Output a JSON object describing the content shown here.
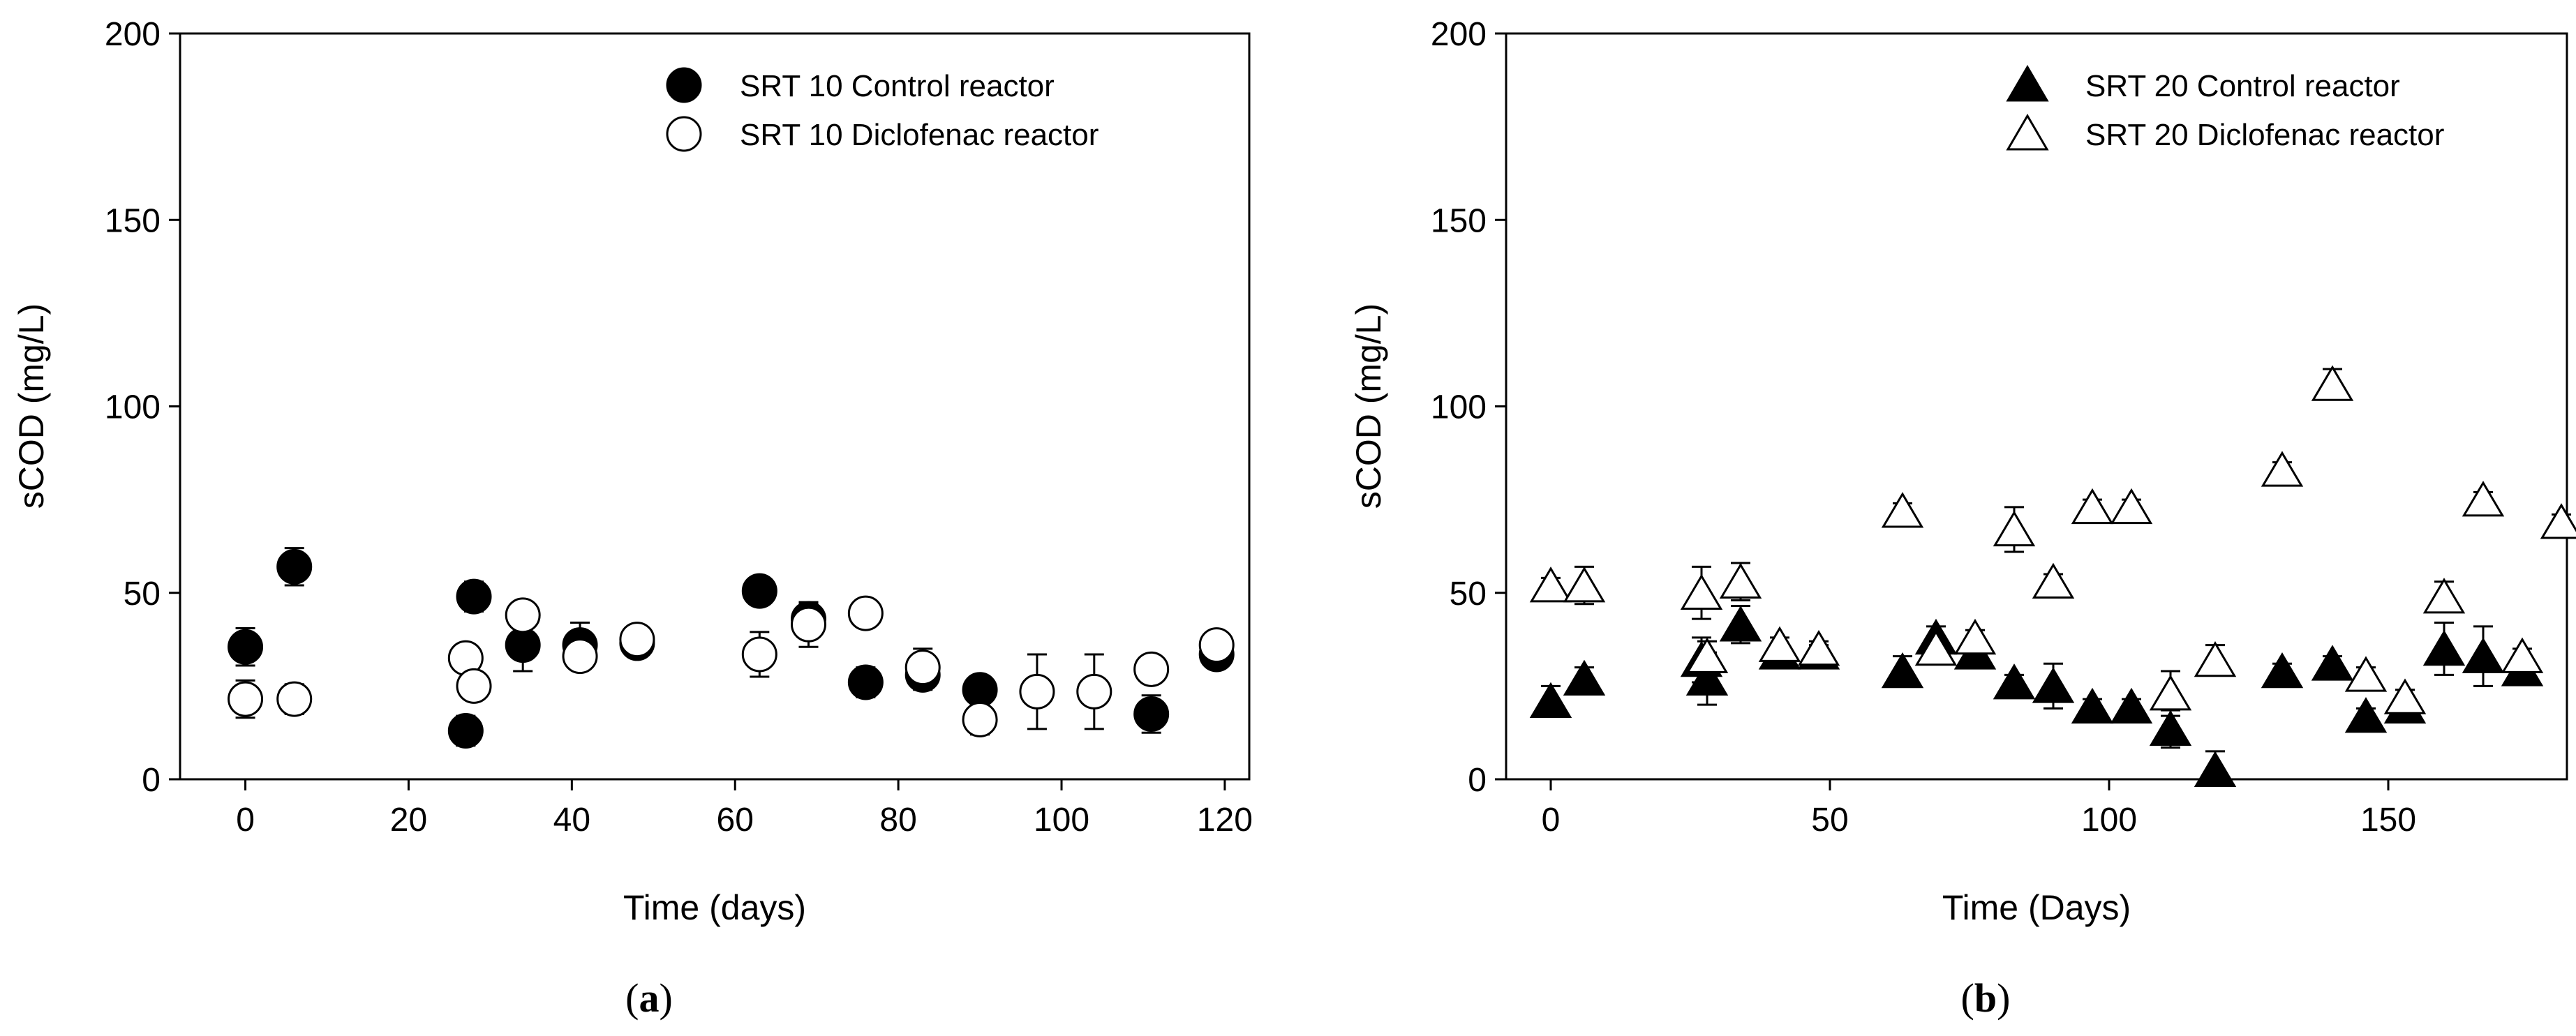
{
  "chart_data": [
    {
      "type": "scatter",
      "caption": {
        "open": "(",
        "letter": "a",
        "close": ")"
      },
      "xlabel": "Time (days)",
      "ylabel": "sCOD (mg/L)",
      "xlim": [
        -8,
        123
      ],
      "ylim": [
        0,
        200
      ],
      "xticks": [
        0,
        20,
        40,
        60,
        80,
        100,
        120
      ],
      "yticks": [
        0,
        50,
        100,
        150,
        200
      ],
      "grid": false,
      "legend_position": "top-right",
      "series": [
        {
          "name": "SRT 10 Control reactor",
          "marker": "circle",
          "fill": "#000000",
          "points": [
            {
              "x": 0,
              "y": 35.5,
              "err": 5
            },
            {
              "x": 6,
              "y": 57,
              "err": 5
            },
            {
              "x": 27,
              "y": 13,
              "err": 4
            },
            {
              "x": 28,
              "y": 49,
              "err": 4
            },
            {
              "x": 34,
              "y": 36,
              "err": 7
            },
            {
              "x": 41,
              "y": 36,
              "err": 6
            },
            {
              "x": 48,
              "y": 36.5,
              "err": 2
            },
            {
              "x": 63,
              "y": 50.5,
              "err": 2
            },
            {
              "x": 69,
              "y": 43,
              "err": 4
            },
            {
              "x": 76,
              "y": 26,
              "err": 4
            },
            {
              "x": 83,
              "y": 28,
              "err": 4
            },
            {
              "x": 90,
              "y": 24,
              "err": 3
            },
            {
              "x": 111,
              "y": 17.5,
              "err": 5
            },
            {
              "x": 119,
              "y": 33.5,
              "err": 3
            }
          ]
        },
        {
          "name": "SRT 10 Diclofenac reactor",
          "marker": "circle",
          "fill": "#ffffff",
          "points": [
            {
              "x": 0,
              "y": 21.5,
              "err": 5
            },
            {
              "x": 6,
              "y": 21.5,
              "err": 4
            },
            {
              "x": 27,
              "y": 32.5,
              "err": 2
            },
            {
              "x": 28,
              "y": 25,
              "err": 2
            },
            {
              "x": 34,
              "y": 44,
              "err": 2
            },
            {
              "x": 41,
              "y": 33,
              "err": 3
            },
            {
              "x": 48,
              "y": 37.5,
              "err": 2
            },
            {
              "x": 63,
              "y": 33.5,
              "err": 6
            },
            {
              "x": 69,
              "y": 41.5,
              "err": 6
            },
            {
              "x": 76,
              "y": 44.5,
              "err": 2
            },
            {
              "x": 83,
              "y": 30,
              "err": 5
            },
            {
              "x": 90,
              "y": 16,
              "err": 4
            },
            {
              "x": 97,
              "y": 23.5,
              "err": 10
            },
            {
              "x": 104,
              "y": 23.5,
              "err": 10
            },
            {
              "x": 111,
              "y": 29.5,
              "err": 2
            },
            {
              "x": 119,
              "y": 36,
              "err": 2
            }
          ]
        }
      ]
    },
    {
      "type": "scatter",
      "caption": {
        "open": "(",
        "letter": "b",
        "close": ")"
      },
      "xlabel": "Time (Days)",
      "ylabel": "sCOD (mg/L)",
      "xlim": [
        -8,
        182
      ],
      "ylim": [
        0,
        200
      ],
      "xticks": [
        0,
        50,
        100,
        150
      ],
      "yticks": [
        0,
        50,
        100,
        150,
        200
      ],
      "grid": false,
      "legend_position": "top-right",
      "series": [
        {
          "name": "SRT 20 Control reactor",
          "marker": "triangle",
          "fill": "#000000",
          "points": [
            {
              "x": 0,
              "y": 21,
              "err": 4
            },
            {
              "x": 6,
              "y": 27,
              "err": 3
            },
            {
              "x": 27,
              "y": 32,
              "err": 6
            },
            {
              "x": 28,
              "y": 27,
              "err": 7
            },
            {
              "x": 34,
              "y": 41.5,
              "err": 5
            },
            {
              "x": 41,
              "y": 34,
              "err": 2
            },
            {
              "x": 48,
              "y": 34,
              "err": 2
            },
            {
              "x": 63,
              "y": 29,
              "err": 4
            },
            {
              "x": 69,
              "y": 38,
              "err": 3
            },
            {
              "x": 76,
              "y": 34,
              "err": 2
            },
            {
              "x": 83,
              "y": 26,
              "err": 2
            },
            {
              "x": 90,
              "y": 25,
              "err": 6
            },
            {
              "x": 97,
              "y": 19.5,
              "err": 2
            },
            {
              "x": 104,
              "y": 19.5,
              "err": 2
            },
            {
              "x": 111,
              "y": 13.5,
              "err": 5
            },
            {
              "x": 119,
              "y": 2.5,
              "err": 5
            },
            {
              "x": 131,
              "y": 29,
              "err": 2
            },
            {
              "x": 140,
              "y": 31,
              "err": 2
            },
            {
              "x": 146,
              "y": 17,
              "err": 2
            },
            {
              "x": 153,
              "y": 19.5,
              "err": 2
            },
            {
              "x": 160,
              "y": 35,
              "err": 7
            },
            {
              "x": 167,
              "y": 33,
              "err": 8
            },
            {
              "x": 174,
              "y": 29.5,
              "err": 2
            }
          ]
        },
        {
          "name": "SRT 20 Diclofenac reactor",
          "marker": "triangle",
          "fill": "#ffffff",
          "points": [
            {
              "x": 0,
              "y": 52,
              "err": 2
            },
            {
              "x": 6,
              "y": 52,
              "err": 5
            },
            {
              "x": 27,
              "y": 50,
              "err": 7
            },
            {
              "x": 28,
              "y": 33,
              "err": 4
            },
            {
              "x": 34,
              "y": 53,
              "err": 5
            },
            {
              "x": 41,
              "y": 36,
              "err": 2
            },
            {
              "x": 48,
              "y": 35,
              "err": 2
            },
            {
              "x": 63,
              "y": 72,
              "err": 2
            },
            {
              "x": 69,
              "y": 35,
              "err": 2
            },
            {
              "x": 76,
              "y": 38,
              "err": 2
            },
            {
              "x": 83,
              "y": 67,
              "err": 6
            },
            {
              "x": 90,
              "y": 53,
              "err": 2
            },
            {
              "x": 97,
              "y": 73,
              "err": 2
            },
            {
              "x": 104,
              "y": 73,
              "err": 2
            },
            {
              "x": 111,
              "y": 23,
              "err": 6
            },
            {
              "x": 119,
              "y": 32,
              "err": 4
            },
            {
              "x": 131,
              "y": 83,
              "err": 2
            },
            {
              "x": 140,
              "y": 106,
              "err": 4
            },
            {
              "x": 146,
              "y": 28,
              "err": 2
            },
            {
              "x": 153,
              "y": 22,
              "err": 2
            },
            {
              "x": 160,
              "y": 49,
              "err": 4
            },
            {
              "x": 167,
              "y": 75,
              "err": 2
            },
            {
              "x": 174,
              "y": 33,
              "err": 2
            },
            {
              "x": 181,
              "y": 69,
              "err": 2
            }
          ]
        }
      ]
    }
  ]
}
